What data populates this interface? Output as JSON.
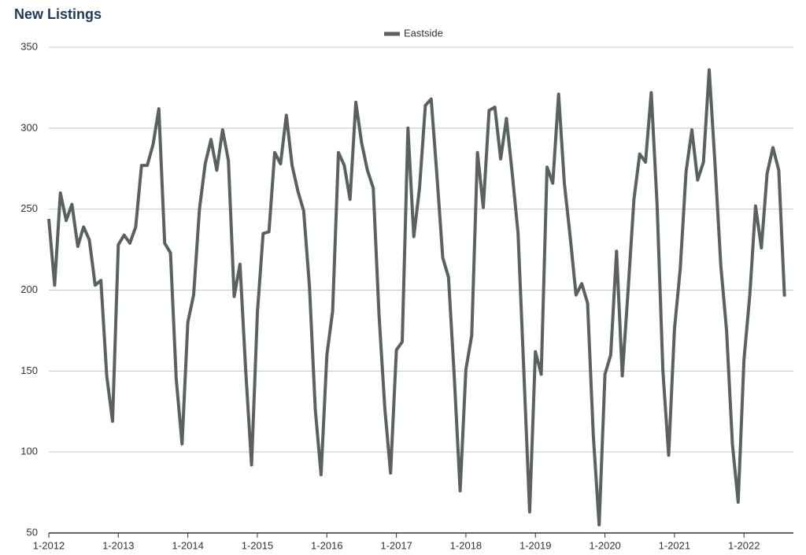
{
  "chart_data": {
    "type": "line",
    "title": "New Listings",
    "categories": [
      "1-2012",
      null,
      null,
      null,
      null,
      null,
      null,
      null,
      null,
      null,
      null,
      null,
      "1-2013",
      null,
      null,
      null,
      null,
      null,
      null,
      null,
      null,
      null,
      null,
      null,
      "1-2014",
      null,
      null,
      null,
      null,
      null,
      null,
      null,
      null,
      null,
      null,
      null,
      "1-2015",
      null,
      null,
      null,
      null,
      null,
      null,
      null,
      null,
      null,
      null,
      null,
      "1-2016",
      null,
      null,
      null,
      null,
      null,
      null,
      null,
      null,
      null,
      null,
      null,
      "1-2017",
      null,
      null,
      null,
      null,
      null,
      null,
      null,
      null,
      null,
      null,
      null,
      "1-2018",
      null,
      null,
      null,
      null,
      null,
      null,
      null,
      null,
      null,
      null,
      null,
      "1-2019",
      null,
      null,
      null,
      null,
      null,
      null,
      null,
      null,
      null,
      null,
      null,
      "1-2020",
      null,
      null,
      null,
      null,
      null,
      null,
      null,
      null,
      null,
      null,
      null,
      "1-2021",
      null,
      null,
      null,
      null,
      null,
      null,
      null,
      null,
      null,
      null,
      null,
      "1-2022",
      null,
      null,
      null,
      null,
      null,
      null,
      null
    ],
    "series": [
      {
        "name": "Eastside",
        "color": "#5a6261",
        "values": [
          244,
          203,
          260,
          243,
          253,
          227,
          239,
          231,
          203,
          206,
          147,
          119,
          228,
          234,
          229,
          239,
          277,
          277,
          290,
          312,
          229,
          223,
          145,
          105,
          180,
          197,
          250,
          278,
          293,
          274,
          299,
          280,
          196,
          216,
          150,
          92,
          186,
          235,
          236,
          285,
          278,
          308,
          277,
          261,
          249,
          202,
          126,
          86,
          160,
          187,
          285,
          277,
          256,
          316,
          291,
          274,
          263,
          185,
          127,
          87,
          163,
          168,
          300,
          233,
          263,
          314,
          318,
          271,
          220,
          208,
          146,
          76,
          151,
          172,
          285,
          251,
          311,
          313,
          281,
          306,
          272,
          235,
          150,
          63,
          162,
          148,
          276,
          266,
          321,
          266,
          233,
          197,
          204,
          192,
          110,
          55,
          148,
          160,
          224,
          147,
          200,
          256,
          284,
          279,
          322,
          253,
          150,
          98,
          176,
          213,
          273,
          299,
          268,
          279,
          336,
          278,
          215,
          175,
          105,
          69,
          157,
          197,
          252,
          226,
          272,
          288,
          274,
          196
        ]
      }
    ],
    "ylim": [
      50,
      350
    ],
    "yticks": [
      50,
      100,
      150,
      200,
      250,
      300,
      350
    ],
    "grid": true,
    "legend": "top"
  }
}
